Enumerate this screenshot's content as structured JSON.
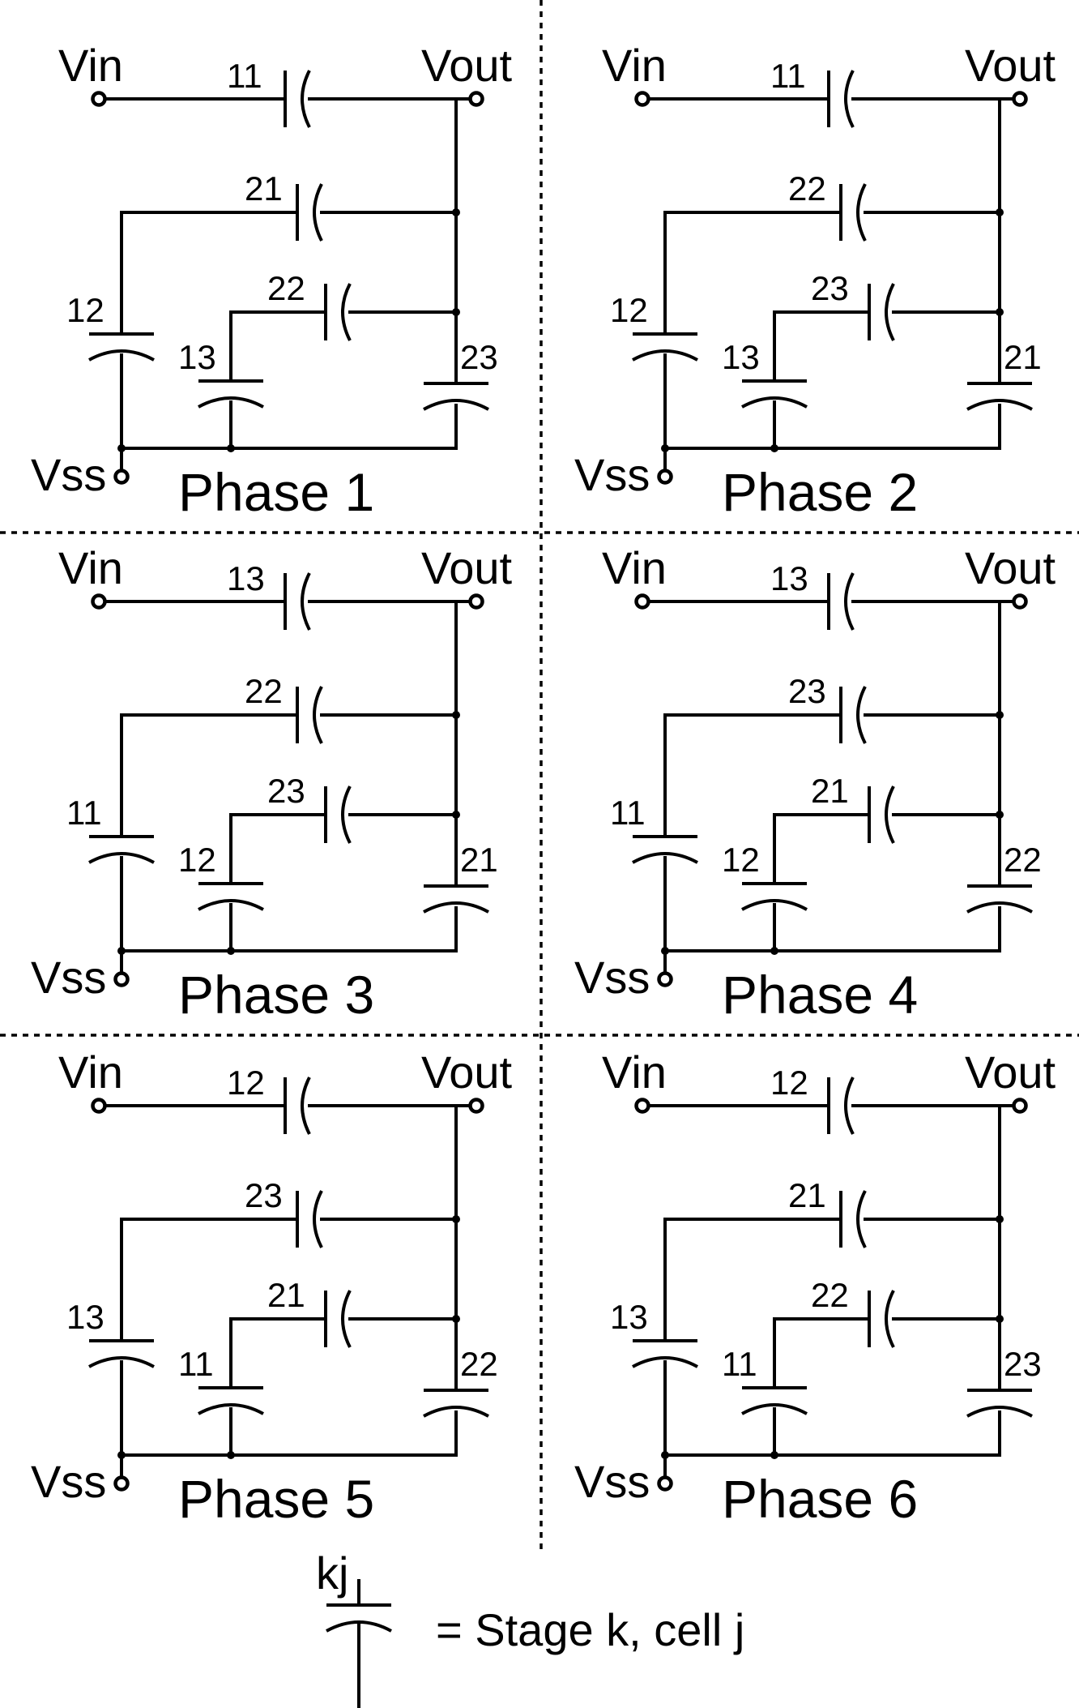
{
  "terminals": {
    "vin": "Vin",
    "vout": "Vout",
    "vss": "Vss"
  },
  "phases": [
    {
      "title": "Phase 1",
      "caps": {
        "top": "11",
        "upper": "21",
        "middle": "22",
        "left": "12",
        "inner": "13",
        "right": "23"
      }
    },
    {
      "title": "Phase 2",
      "caps": {
        "top": "11",
        "upper": "22",
        "middle": "23",
        "left": "12",
        "inner": "13",
        "right": "21"
      }
    },
    {
      "title": "Phase 3",
      "caps": {
        "top": "13",
        "upper": "22",
        "middle": "23",
        "left": "11",
        "inner": "12",
        "right": "21"
      }
    },
    {
      "title": "Phase 4",
      "caps": {
        "top": "13",
        "upper": "23",
        "middle": "21",
        "left": "11",
        "inner": "12",
        "right": "22"
      }
    },
    {
      "title": "Phase 5",
      "caps": {
        "top": "12",
        "upper": "23",
        "middle": "21",
        "left": "13",
        "inner": "11",
        "right": "22"
      }
    },
    {
      "title": "Phase 6",
      "caps": {
        "top": "12",
        "upper": "21",
        "middle": "22",
        "left": "13",
        "inner": "11",
        "right": "23"
      }
    }
  ],
  "legend": {
    "symbol_label": "kj",
    "text": "= Stage k, cell j"
  }
}
